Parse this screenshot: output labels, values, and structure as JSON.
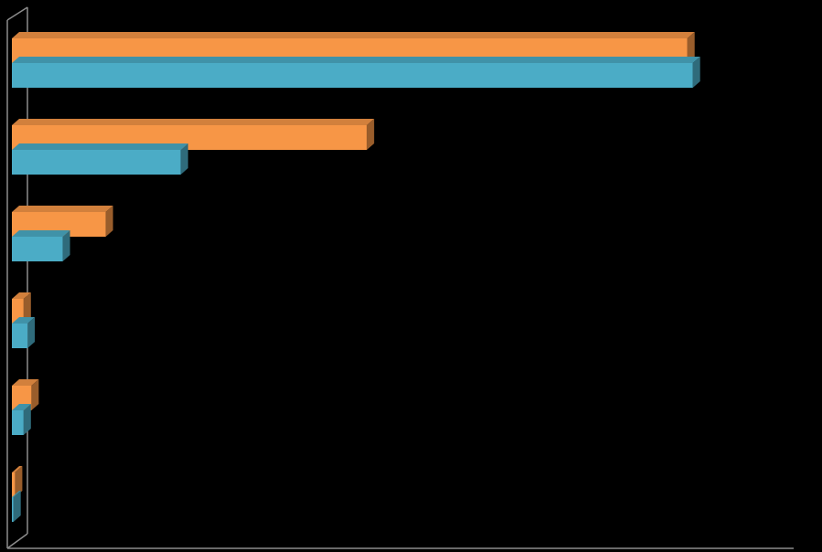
{
  "chart_data": {
    "type": "bar",
    "orientation": "horizontal",
    "three_d": true,
    "categories": [
      null,
      null,
      null,
      null,
      null,
      null
    ],
    "xlim": [
      0,
      100
    ],
    "series": [
      {
        "color": "#f79646",
        "values": [
          86.4,
          45.4,
          12.0,
          1.5,
          2.5,
          0.4
        ]
      },
      {
        "color": "#4bacc6",
        "values": [
          87.1,
          21.6,
          6.5,
          2.0,
          1.5,
          0.2
        ]
      }
    ]
  }
}
